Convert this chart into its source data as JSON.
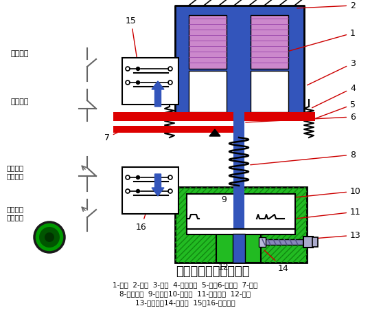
{
  "title": "通电延时型时间继电器",
  "subtitle_lines": [
    "1-线圈  2-铁心  3-衔铁  4-反力弹簧  5-推板6-活塞杆  7-杠杆",
    "8-塔形弹簧  9-弱弹簧10-橡皮膜  11-空气室壁  12-活塞",
    "13-调节螺杆14-进气孔  15、16-微动开关"
  ],
  "bg_color": "#ffffff",
  "blue_color": "#3355bb",
  "red_color": "#dd0000",
  "green_color": "#22bb22",
  "purple_color": "#cc88cc",
  "gray_color": "#666666",
  "ann_red": "#cc0000"
}
